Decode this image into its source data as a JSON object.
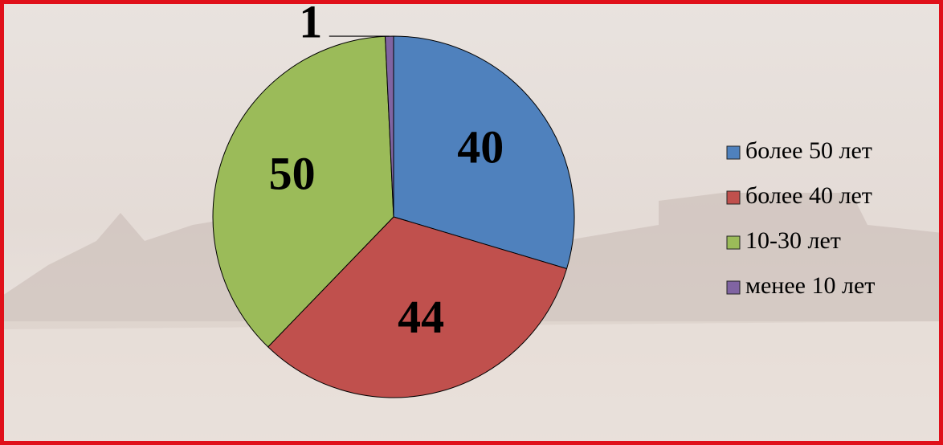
{
  "chart_data": {
    "type": "pie",
    "categories": [
      "более 50 лет",
      "более 40 лет",
      "10-30 лет",
      "менее 10 лет"
    ],
    "values": [
      40,
      44,
      50,
      1
    ],
    "colors": [
      "#4f81bd",
      "#c0504d",
      "#9bbb59",
      "#8064a2"
    ],
    "legend": "right"
  }
}
